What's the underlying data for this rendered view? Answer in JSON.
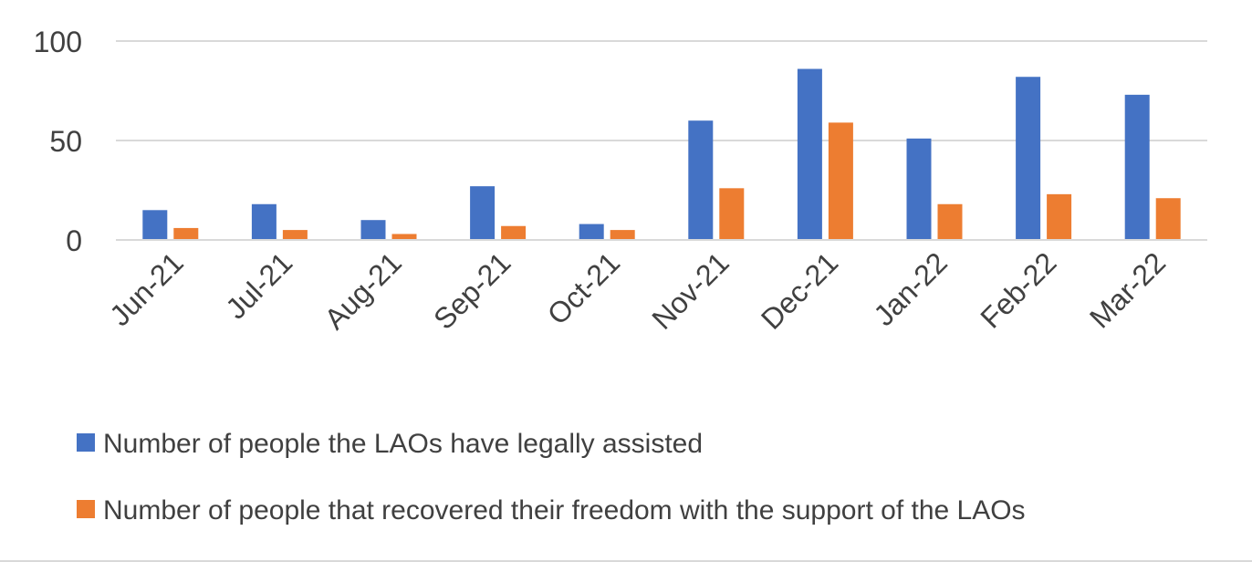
{
  "chart_data": {
    "type": "bar",
    "categories": [
      "Jun-21",
      "Jul-21",
      "Aug-21",
      "Sep-21",
      "Oct-21",
      "Nov-21",
      "Dec-21",
      "Jan-22",
      "Feb-22",
      "Mar-22"
    ],
    "series": [
      {
        "name": "Number of people the LAOs have legally assisted",
        "color": "#4472c4",
        "values": [
          15,
          18,
          10,
          27,
          8,
          60,
          86,
          51,
          82,
          73
        ]
      },
      {
        "name": "Number of people that recovered their freedom with the support of the LAOs",
        "color": "#ed7d31",
        "values": [
          6,
          5,
          3,
          7,
          5,
          26,
          59,
          18,
          23,
          21
        ]
      }
    ],
    "yticks": [
      0,
      50,
      100
    ],
    "ylim": [
      0,
      100
    ],
    "grid": true,
    "legend_position": "bottom"
  }
}
